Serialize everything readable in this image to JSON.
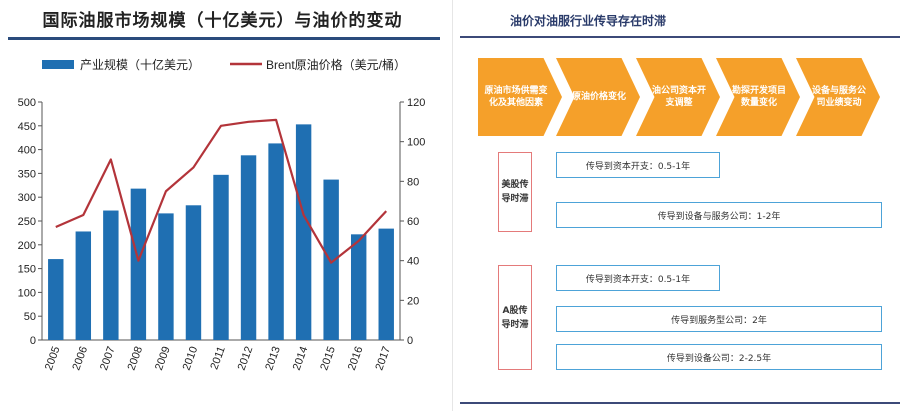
{
  "left": {
    "title": "国际油服市场规模（十亿美元）与油价的变动"
  },
  "chart_data": {
    "type": "bar",
    "categories": [
      "2005",
      "2006",
      "2007",
      "2008",
      "2009",
      "2010",
      "2011",
      "2012",
      "2013",
      "2014",
      "2015",
      "2016",
      "2017"
    ],
    "series": [
      {
        "name": "产业规模（十亿美元）",
        "kind": "bar",
        "axis": "left",
        "values": [
          170,
          228,
          272,
          318,
          266,
          283,
          347,
          388,
          413,
          453,
          337,
          222,
          234
        ]
      },
      {
        "name": "Brent原油价格（美元/桶）",
        "kind": "line",
        "axis": "right",
        "values": [
          57,
          63,
          91,
          40,
          75,
          87,
          108,
          110,
          111,
          63,
          39,
          50,
          65
        ]
      }
    ],
    "ylim_left": [
      0,
      500
    ],
    "ylim_right": [
      0,
      120
    ],
    "yticks_left": [
      0,
      50,
      100,
      150,
      200,
      250,
      300,
      350,
      400,
      450,
      500
    ],
    "yticks_right": [
      0,
      20,
      40,
      60,
      80,
      100,
      120
    ],
    "legend": "top",
    "grid": false,
    "colors": {
      "bar": "#1f6fb2",
      "line": "#b3343a"
    }
  },
  "right": {
    "title": "油价对油服行业传导存在时滞",
    "steps": [
      "原油市场供需变化及其他因素",
      "原油价格变化",
      "油公司资本开支调整",
      "勘探开发项目数量变化",
      "设备与服务公司业绩变动"
    ],
    "groups": [
      {
        "label": "美股传导时滞",
        "items": [
          "传导到资本开支：0.5-1年",
          "传导到设备与服务公司：1-2年"
        ]
      },
      {
        "label": "A股传导时滞",
        "items": [
          "传导到资本开支：0.5-1年",
          "传导到服务型公司：2年",
          "传导到设备公司：2-2.5年"
        ]
      }
    ],
    "colors": {
      "chevron": "#f5a02a",
      "box_border": "#4da3d8",
      "label_border": "#e47a7a"
    }
  }
}
